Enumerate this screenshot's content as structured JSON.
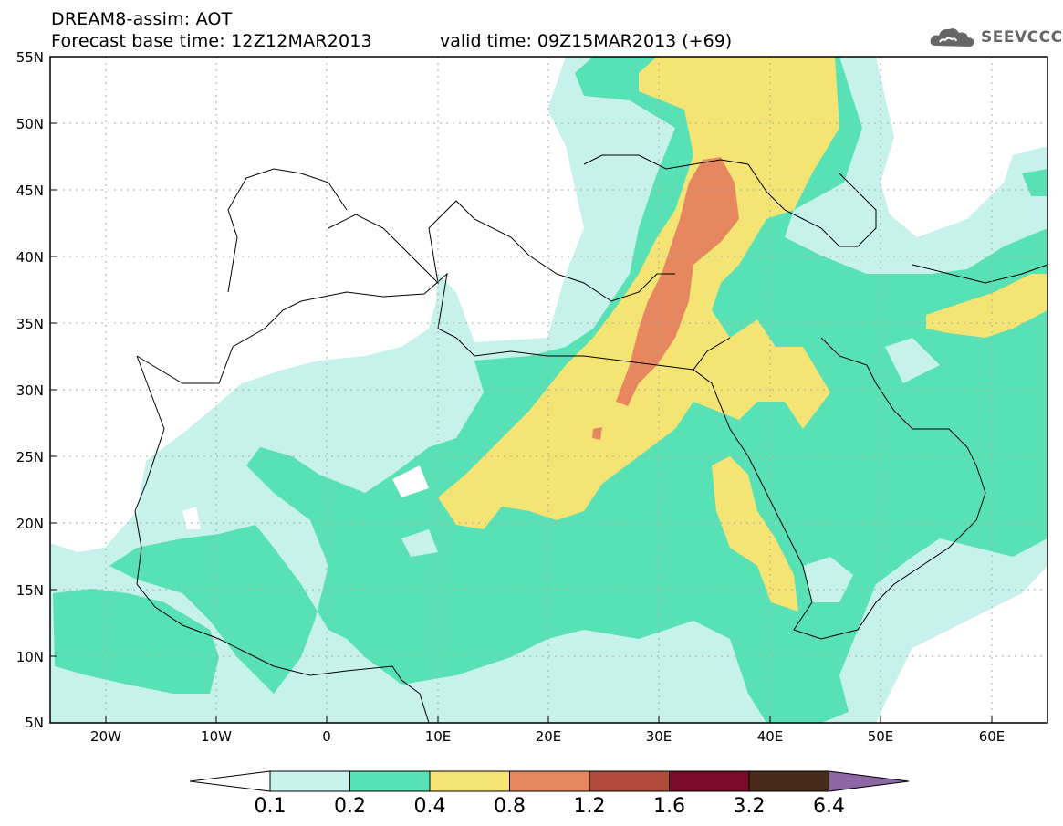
{
  "header": {
    "title": "DREAM8-assim: AOT",
    "forecast_base": "Forecast base time: 12Z12MAR2013",
    "valid_time": "valid time: 09Z15MAR2013 (+69)",
    "logo_text": "SEEVCCC"
  },
  "map": {
    "lat_labels": [
      "55N",
      "50N",
      "45N",
      "40N",
      "35N",
      "30N",
      "25N",
      "20N",
      "15N",
      "10N",
      "5N"
    ],
    "lon_labels": [
      "20W",
      "10W",
      "0",
      "10E",
      "20E",
      "30E",
      "40E",
      "50E",
      "60E"
    ],
    "lat_range": [
      5,
      55
    ],
    "lon_range": [
      -25,
      65
    ],
    "gridlines": "dotted"
  },
  "colorbar": {
    "labels": [
      "0.1",
      "0.2",
      "0.4",
      "0.8",
      "1.2",
      "1.6",
      "3.2",
      "6.4"
    ],
    "colors": [
      "#ffffff",
      "#c7f2ec",
      "#59e1b6",
      "#f3e474",
      "#e7875f",
      "#b04a3a",
      "#7a0b2a",
      "#4a2a1a",
      "#8e66a6"
    ]
  }
}
